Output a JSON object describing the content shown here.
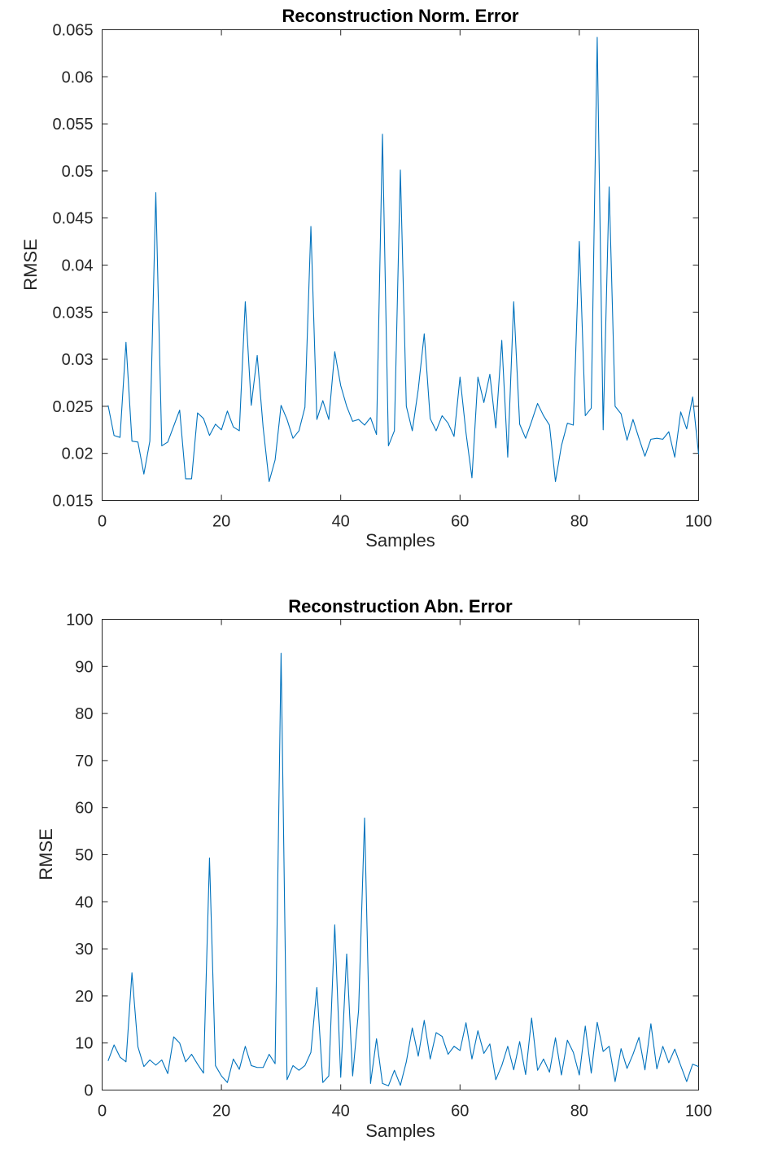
{
  "chart_data": [
    {
      "type": "line",
      "title": "Reconstruction Norm. Error",
      "xlabel": "Samples",
      "ylabel": "RMSE",
      "xlim": [
        0,
        100
      ],
      "ylim": [
        0.015,
        0.065
      ],
      "xticks": [
        0,
        20,
        40,
        60,
        80,
        100
      ],
      "xtick_labels": [
        "0",
        "20",
        "40",
        "60",
        "80",
        "100"
      ],
      "yticks": [
        0.015,
        0.02,
        0.025,
        0.03,
        0.035,
        0.04,
        0.045,
        0.05,
        0.055,
        0.06,
        0.065
      ],
      "ytick_labels": [
        "0.015",
        "0.02",
        "0.025",
        "0.03",
        "0.035",
        "0.04",
        "0.045",
        "0.05",
        "0.055",
        "0.06",
        "0.065"
      ],
      "grid": false,
      "color": "#0072BD",
      "series": [
        {
          "x": [
            1,
            2,
            3,
            4,
            5,
            6,
            7,
            8,
            9,
            10,
            11,
            12,
            13,
            14,
            15,
            16,
            17,
            18,
            19,
            20,
            21,
            22,
            23,
            24,
            25,
            26,
            27,
            28,
            29,
            30,
            31,
            32,
            33,
            34,
            35,
            36,
            37,
            38,
            39,
            40,
            41,
            42,
            43,
            44,
            45,
            46,
            47,
            48,
            49,
            50,
            51,
            52,
            53,
            54,
            55,
            56,
            57,
            58,
            59,
            60,
            61,
            62,
            63,
            64,
            65,
            66,
            67,
            68,
            69,
            70,
            71,
            72,
            73,
            74,
            75,
            76,
            77,
            78,
            79,
            80,
            81,
            82,
            83,
            84,
            85,
            86,
            87,
            88,
            89,
            90,
            91,
            92,
            93,
            94,
            95,
            96,
            97,
            98,
            99,
            100
          ],
          "values": [
            0.0251,
            0.0219,
            0.0217,
            0.0318,
            0.0213,
            0.0212,
            0.0178,
            0.0213,
            0.0477,
            0.0208,
            0.0212,
            0.0229,
            0.0246,
            0.0173,
            0.0173,
            0.0243,
            0.0237,
            0.0219,
            0.0231,
            0.0225,
            0.0245,
            0.0228,
            0.0224,
            0.0361,
            0.0251,
            0.0304,
            0.0227,
            0.017,
            0.0193,
            0.0251,
            0.0236,
            0.0216,
            0.0224,
            0.0249,
            0.0441,
            0.0236,
            0.0256,
            0.0236,
            0.0308,
            0.0272,
            0.025,
            0.0234,
            0.0236,
            0.023,
            0.0238,
            0.022,
            0.0539,
            0.0208,
            0.0224,
            0.0501,
            0.025,
            0.0224,
            0.0268,
            0.0327,
            0.0237,
            0.0224,
            0.024,
            0.0232,
            0.0218,
            0.0281,
            0.0222,
            0.0174,
            0.0281,
            0.0254,
            0.0284,
            0.0227,
            0.032,
            0.0196,
            0.0361,
            0.0231,
            0.0216,
            0.0234,
            0.0253,
            0.024,
            0.023,
            0.017,
            0.0208,
            0.0232,
            0.023,
            0.0425,
            0.024,
            0.0248,
            0.0642,
            0.0225,
            0.0483,
            0.025,
            0.0242,
            0.0214,
            0.0236,
            0.0216,
            0.0197,
            0.0215,
            0.0216,
            0.0215,
            0.0223,
            0.0196,
            0.0244,
            0.0226,
            0.026,
            0.0199
          ]
        }
      ]
    },
    {
      "type": "line",
      "title": "Reconstruction Abn. Error",
      "xlabel": "Samples",
      "ylabel": "RMSE",
      "xlim": [
        0,
        100
      ],
      "ylim": [
        0,
        100
      ],
      "xticks": [
        0,
        20,
        40,
        60,
        80,
        100
      ],
      "xtick_labels": [
        "0",
        "20",
        "40",
        "60",
        "80",
        "100"
      ],
      "yticks": [
        0,
        10,
        20,
        30,
        40,
        50,
        60,
        70,
        80,
        90,
        100
      ],
      "ytick_labels": [
        "0",
        "10",
        "20",
        "30",
        "40",
        "50",
        "60",
        "70",
        "80",
        "90",
        "100"
      ],
      "grid": false,
      "color": "#0072BD",
      "series": [
        {
          "x": [
            1,
            2,
            3,
            4,
            5,
            6,
            7,
            8,
            9,
            10,
            11,
            12,
            13,
            14,
            15,
            16,
            17,
            18,
            19,
            20,
            21,
            22,
            23,
            24,
            25,
            26,
            27,
            28,
            29,
            30,
            31,
            32,
            33,
            34,
            35,
            36,
            37,
            38,
            39,
            40,
            41,
            42,
            43,
            44,
            45,
            46,
            47,
            48,
            49,
            50,
            51,
            52,
            53,
            54,
            55,
            56,
            57,
            58,
            59,
            60,
            61,
            62,
            63,
            64,
            65,
            66,
            67,
            68,
            69,
            70,
            71,
            72,
            73,
            74,
            75,
            76,
            77,
            78,
            79,
            80,
            81,
            82,
            83,
            84,
            85,
            86,
            87,
            88,
            89,
            90,
            91,
            92,
            93,
            94,
            95,
            96,
            97,
            98,
            99,
            100
          ],
          "values": [
            6.2,
            9.6,
            7,
            6,
            24.9,
            9.2,
            5,
            6.4,
            5.3,
            6.4,
            3.5,
            11.3,
            10,
            6,
            7.6,
            5.5,
            3.6,
            49.3,
            5.2,
            3,
            1.6,
            6.6,
            4.4,
            9.3,
            5.2,
            4.8,
            4.8,
            7.6,
            5.6,
            92.8,
            2.2,
            5.2,
            4.2,
            5.2,
            8,
            21.8,
            1.6,
            3,
            35.1,
            2.7,
            28.9,
            3,
            17,
            57.8,
            1.4,
            10.9,
            1.4,
            0.9,
            4.2,
            1,
            6,
            13.2,
            7.2,
            14.8,
            6.6,
            12.2,
            11.4,
            7.6,
            9.3,
            8.4,
            14.3,
            6.6,
            12.6,
            7.8,
            9.8,
            2.2,
            5.2,
            9.3,
            4.3,
            10.3,
            3.3,
            15.3,
            4.2,
            6.6,
            3.8,
            11.1,
            3.2,
            10.6,
            8,
            3.2,
            13.6,
            3.6,
            14.4,
            8.2,
            9.3,
            1.8,
            8.8,
            4.6,
            7.6,
            11.2,
            4.3,
            14.1,
            4.5,
            9.3,
            5.8,
            8.7,
            5.2,
            1.8,
            5.5,
            5
          ]
        }
      ]
    }
  ]
}
